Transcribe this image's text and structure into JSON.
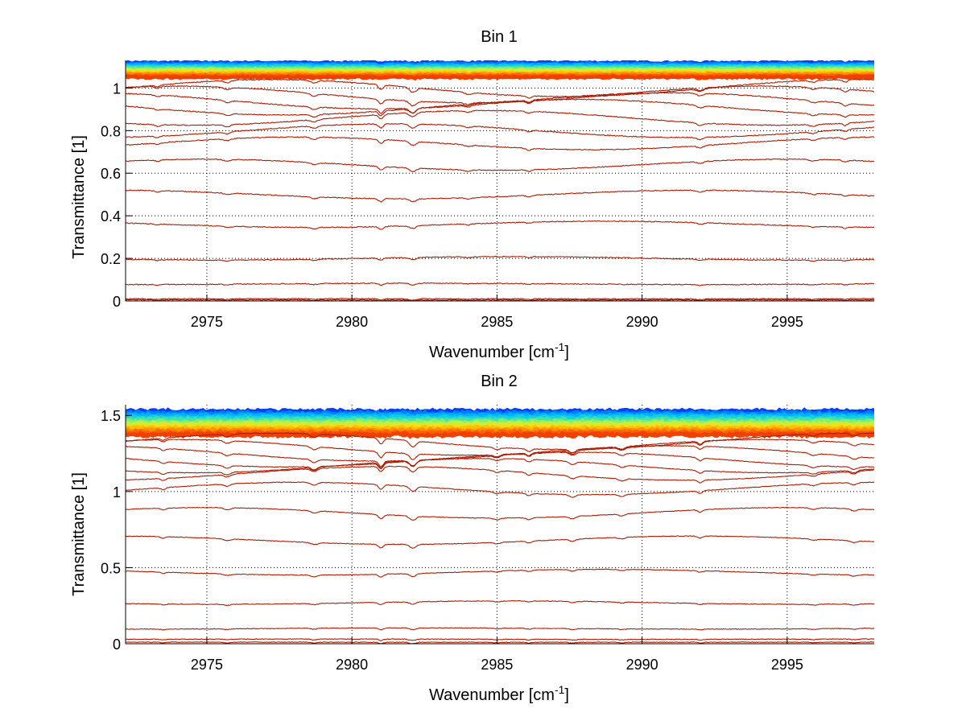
{
  "chart_data": [
    {
      "type": "line",
      "title": "Bin 1",
      "xlabel": "Wavenumber [cm",
      "xlabel_sup": "-1",
      "xlabel_tail": "]",
      "ylabel": "Transmittance [1]",
      "xlim": [
        2972.2,
        2998
      ],
      "ylim": [
        0,
        1.13
      ],
      "xticks": [
        2975,
        2980,
        2985,
        2990,
        2995
      ],
      "xtick_labels": [
        "2975",
        "2980",
        "2985",
        "2990",
        "2995"
      ],
      "yticks": [
        0,
        0.2,
        0.4,
        0.6,
        0.8,
        1
      ],
      "ytick_labels": [
        "0",
        "0.2",
        "0.4",
        "0.6",
        "0.8",
        "1"
      ],
      "grid": true,
      "legend": "none",
      "series_baselines": [
        1.0,
        0.97,
        0.94,
        0.91,
        0.86,
        0.8,
        0.74,
        0.64,
        0.5,
        0.36,
        0.2,
        0.08,
        0.01,
        0.005
      ],
      "colored_band": [
        1.05,
        1.12
      ],
      "absorption_lines_cm-1": [
        2973.3,
        2975.7,
        2978.7,
        2981.0,
        2982.1,
        2984.0,
        2986.1,
        2992.0,
        2995.9,
        2997.0
      ],
      "line_color": "#b01a00"
    },
    {
      "type": "line",
      "title": "Bin 2",
      "xlabel": "Wavenumber [cm",
      "xlabel_sup": "-1",
      "xlabel_tail": "]",
      "ylabel": "Transmittance [1]",
      "xlim": [
        2972.2,
        2998
      ],
      "ylim": [
        0,
        1.57
      ],
      "xticks": [
        2975,
        2980,
        2985,
        2990,
        2995
      ],
      "xtick_labels": [
        "2975",
        "2980",
        "2985",
        "2990",
        "2995"
      ],
      "yticks": [
        0,
        0.5,
        1,
        1.5
      ],
      "ytick_labels": [
        "0",
        "0.5",
        "1",
        "1.5"
      ],
      "grid": true,
      "legend": "none",
      "series_baselines": [
        1.33,
        1.29,
        1.25,
        1.21,
        1.17,
        1.12,
        1.02,
        0.86,
        0.68,
        0.47,
        0.27,
        0.1,
        0.03,
        0.01
      ],
      "colored_band": [
        1.37,
        1.53
      ],
      "absorption_lines_cm-1": [
        2973.5,
        2975.7,
        2978.7,
        2981.0,
        2982.1,
        2985.0,
        2986.1,
        2987.6,
        2989.3,
        2992.0,
        2995.9,
        2997.3
      ],
      "line_color": "#b01a00"
    }
  ]
}
